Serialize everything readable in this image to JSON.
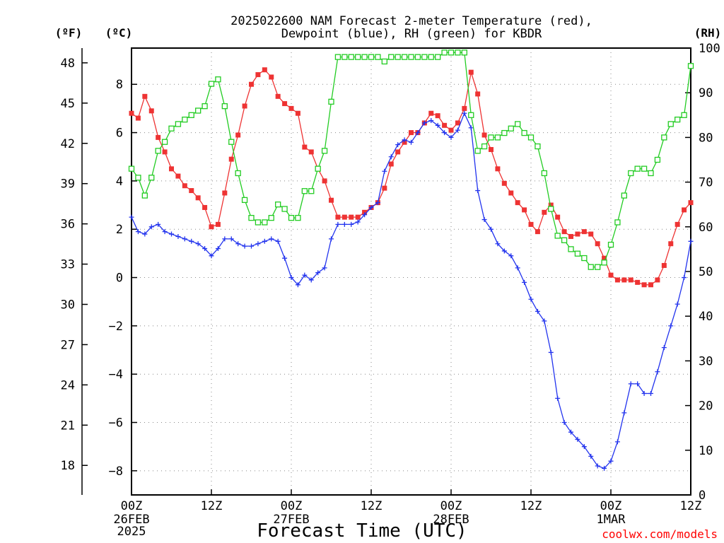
{
  "title_line1": "2025022600 NAM Forecast 2-meter Temperature (red),",
  "title_line2": "Dewpoint (blue), RH (green) for KBDR",
  "unit_f": "(ºF)",
  "unit_c": "(ºC)",
  "unit_rh": "(RH)",
  "xlabel": "Forecast Time (UTC)",
  "credit": "coolwx.com/models",
  "colors": {
    "temperature": "#ee3333",
    "dewpoint": "#2233ee",
    "rh": "#22cc22",
    "credit": "#ff0000"
  },
  "chart_data": {
    "type": "line",
    "x_unit": "forecast hour",
    "xlim": [
      0,
      84
    ],
    "ylim_c": [
      -9,
      9.5
    ],
    "ylim_rh": [
      0,
      100
    ],
    "f_ticks": [
      "18",
      "21",
      "24",
      "27",
      "30",
      "33",
      "36",
      "39",
      "42",
      "45",
      "48"
    ],
    "c_ticks": [
      "-8",
      "-6",
      "-4",
      "-2",
      "0",
      "2",
      "4",
      "6",
      "8"
    ],
    "rh_ticks": [
      "0",
      "10",
      "20",
      "30",
      "40",
      "50",
      "60",
      "70",
      "80",
      "90",
      "100"
    ],
    "x_ticks": [
      {
        "hour": 0,
        "label": "00Z",
        "line2": "26FEB",
        "line3": "2025"
      },
      {
        "hour": 12,
        "label": "12Z",
        "line2": "",
        "line3": ""
      },
      {
        "hour": 24,
        "label": "00Z",
        "line2": "27FEB",
        "line3": ""
      },
      {
        "hour": 36,
        "label": "12Z",
        "line2": "",
        "line3": ""
      },
      {
        "hour": 48,
        "label": "00Z",
        "line2": "28FEB",
        "line3": ""
      },
      {
        "hour": 60,
        "label": "12Z",
        "line2": "",
        "line3": ""
      },
      {
        "hour": 72,
        "label": "00Z",
        "line2": "1MAR",
        "line3": ""
      },
      {
        "hour": 84,
        "label": "12Z",
        "line2": "",
        "line3": ""
      }
    ],
    "grid": true,
    "series": [
      {
        "key": "temperature",
        "axis": "c",
        "values": [
          [
            0,
            6.8
          ],
          [
            1,
            6.6
          ],
          [
            2,
            7.5
          ],
          [
            3,
            6.9
          ],
          [
            4,
            5.8
          ],
          [
            5,
            5.2
          ],
          [
            6,
            4.5
          ],
          [
            7,
            4.2
          ],
          [
            8,
            3.8
          ],
          [
            9,
            3.6
          ],
          [
            10,
            3.3
          ],
          [
            11,
            2.9
          ],
          [
            12,
            2.1
          ],
          [
            13,
            2.2
          ],
          [
            14,
            3.5
          ],
          [
            15,
            4.9
          ],
          [
            16,
            5.9
          ],
          [
            17,
            7.1
          ],
          [
            18,
            8.0
          ],
          [
            19,
            8.4
          ],
          [
            20,
            8.6
          ],
          [
            21,
            8.3
          ],
          [
            22,
            7.5
          ],
          [
            23,
            7.2
          ],
          [
            24,
            7.0
          ],
          [
            25,
            6.8
          ],
          [
            26,
            5.4
          ],
          [
            27,
            5.2
          ],
          [
            28,
            4.5
          ],
          [
            29,
            4.0
          ],
          [
            30,
            3.2
          ],
          [
            31,
            2.5
          ],
          [
            32,
            2.5
          ],
          [
            33,
            2.5
          ],
          [
            34,
            2.5
          ],
          [
            35,
            2.7
          ],
          [
            36,
            2.9
          ],
          [
            37,
            3.1
          ],
          [
            38,
            3.7
          ],
          [
            39,
            4.7
          ],
          [
            40,
            5.2
          ],
          [
            41,
            5.6
          ],
          [
            42,
            6.0
          ],
          [
            43,
            6.0
          ],
          [
            44,
            6.4
          ],
          [
            45,
            6.8
          ],
          [
            46,
            6.7
          ],
          [
            47,
            6.3
          ],
          [
            48,
            6.1
          ],
          [
            49,
            6.4
          ],
          [
            50,
            7.0
          ],
          [
            51,
            8.5
          ],
          [
            52,
            7.6
          ],
          [
            53,
            5.9
          ],
          [
            54,
            5.3
          ],
          [
            55,
            4.5
          ],
          [
            56,
            3.9
          ],
          [
            57,
            3.5
          ],
          [
            58,
            3.1
          ],
          [
            59,
            2.8
          ],
          [
            60,
            2.2
          ],
          [
            61,
            1.9
          ],
          [
            62,
            2.7
          ],
          [
            63,
            3.0
          ],
          [
            64,
            2.5
          ],
          [
            65,
            1.9
          ],
          [
            66,
            1.7
          ],
          [
            67,
            1.8
          ],
          [
            68,
            1.9
          ],
          [
            69,
            1.8
          ],
          [
            70,
            1.4
          ],
          [
            71,
            0.8
          ],
          [
            72,
            0.1
          ],
          [
            73,
            -0.1
          ],
          [
            74,
            -0.1
          ],
          [
            75,
            -0.1
          ],
          [
            76,
            -0.2
          ],
          [
            77,
            -0.3
          ],
          [
            78,
            -0.3
          ],
          [
            79,
            -0.1
          ],
          [
            80,
            0.5
          ],
          [
            81,
            1.4
          ],
          [
            82,
            2.2
          ],
          [
            83,
            2.8
          ],
          [
            84,
            3.1
          ]
        ]
      },
      {
        "key": "dewpoint",
        "axis": "c",
        "values": [
          [
            0,
            2.5
          ],
          [
            1,
            1.9
          ],
          [
            2,
            1.8
          ],
          [
            3,
            2.1
          ],
          [
            4,
            2.2
          ],
          [
            5,
            1.9
          ],
          [
            6,
            1.8
          ],
          [
            7,
            1.7
          ],
          [
            8,
            1.6
          ],
          [
            9,
            1.5
          ],
          [
            10,
            1.4
          ],
          [
            11,
            1.2
          ],
          [
            12,
            0.9
          ],
          [
            13,
            1.2
          ],
          [
            14,
            1.6
          ],
          [
            15,
            1.6
          ],
          [
            16,
            1.4
          ],
          [
            17,
            1.3
          ],
          [
            18,
            1.3
          ],
          [
            19,
            1.4
          ],
          [
            20,
            1.5
          ],
          [
            21,
            1.6
          ],
          [
            22,
            1.5
          ],
          [
            23,
            0.8
          ],
          [
            24,
            0.0
          ],
          [
            25,
            -0.3
          ],
          [
            26,
            0.1
          ],
          [
            27,
            -0.1
          ],
          [
            28,
            0.2
          ],
          [
            29,
            0.4
          ],
          [
            30,
            1.6
          ],
          [
            31,
            2.2
          ],
          [
            32,
            2.2
          ],
          [
            33,
            2.2
          ],
          [
            34,
            2.3
          ],
          [
            35,
            2.6
          ],
          [
            36,
            2.9
          ],
          [
            37,
            3.1
          ],
          [
            38,
            4.4
          ],
          [
            39,
            5.0
          ],
          [
            40,
            5.5
          ],
          [
            41,
            5.7
          ],
          [
            42,
            5.6
          ],
          [
            43,
            6.0
          ],
          [
            44,
            6.4
          ],
          [
            45,
            6.5
          ],
          [
            46,
            6.3
          ],
          [
            47,
            6.0
          ],
          [
            48,
            5.8
          ],
          [
            49,
            6.1
          ],
          [
            50,
            6.8
          ],
          [
            51,
            6.2
          ],
          [
            52,
            3.6
          ],
          [
            53,
            2.4
          ],
          [
            54,
            2.0
          ],
          [
            55,
            1.4
          ],
          [
            56,
            1.1
          ],
          [
            57,
            0.9
          ],
          [
            58,
            0.4
          ],
          [
            59,
            -0.2
          ],
          [
            60,
            -0.9
          ],
          [
            61,
            -1.4
          ],
          [
            62,
            -1.8
          ],
          [
            63,
            -3.1
          ],
          [
            64,
            -5.0
          ],
          [
            65,
            -6.0
          ],
          [
            66,
            -6.4
          ],
          [
            67,
            -6.7
          ],
          [
            68,
            -7.0
          ],
          [
            69,
            -7.4
          ],
          [
            70,
            -7.8
          ],
          [
            71,
            -7.9
          ],
          [
            72,
            -7.6
          ],
          [
            73,
            -6.8
          ],
          [
            74,
            -5.6
          ],
          [
            75,
            -4.4
          ],
          [
            76,
            -4.4
          ],
          [
            77,
            -4.8
          ],
          [
            78,
            -4.8
          ],
          [
            79,
            -3.9
          ],
          [
            80,
            -2.9
          ],
          [
            81,
            -2.0
          ],
          [
            82,
            -1.1
          ],
          [
            83,
            -0.0
          ],
          [
            84,
            1.5
          ]
        ]
      },
      {
        "key": "rh",
        "axis": "rh",
        "values": [
          [
            0,
            73
          ],
          [
            1,
            71
          ],
          [
            2,
            67
          ],
          [
            3,
            71
          ],
          [
            4,
            77
          ],
          [
            5,
            79
          ],
          [
            6,
            82
          ],
          [
            7,
            83
          ],
          [
            8,
            84
          ],
          [
            9,
            85
          ],
          [
            10,
            86
          ],
          [
            11,
            87
          ],
          [
            12,
            92
          ],
          [
            13,
            93
          ],
          [
            14,
            87
          ],
          [
            15,
            79
          ],
          [
            16,
            72
          ],
          [
            17,
            66
          ],
          [
            18,
            62
          ],
          [
            19,
            61
          ],
          [
            20,
            61
          ],
          [
            21,
            62
          ],
          [
            22,
            65
          ],
          [
            23,
            64
          ],
          [
            24,
            62
          ],
          [
            25,
            62
          ],
          [
            26,
            68
          ],
          [
            27,
            68
          ],
          [
            28,
            73
          ],
          [
            29,
            77
          ],
          [
            30,
            88
          ],
          [
            31,
            98
          ],
          [
            32,
            98
          ],
          [
            33,
            98
          ],
          [
            34,
            98
          ],
          [
            35,
            98
          ],
          [
            36,
            98
          ],
          [
            37,
            98
          ],
          [
            38,
            97
          ],
          [
            39,
            98
          ],
          [
            40,
            98
          ],
          [
            41,
            98
          ],
          [
            42,
            98
          ],
          [
            43,
            98
          ],
          [
            44,
            98
          ],
          [
            45,
            98
          ],
          [
            46,
            98
          ],
          [
            47,
            99
          ],
          [
            48,
            99
          ],
          [
            49,
            99
          ],
          [
            50,
            99
          ],
          [
            51,
            85
          ],
          [
            52,
            77
          ],
          [
            53,
            78
          ],
          [
            54,
            80
          ],
          [
            55,
            80
          ],
          [
            56,
            81
          ],
          [
            57,
            82
          ],
          [
            58,
            83
          ],
          [
            59,
            81
          ],
          [
            60,
            80
          ],
          [
            61,
            78
          ],
          [
            62,
            72
          ],
          [
            63,
            64
          ],
          [
            64,
            58
          ],
          [
            65,
            57
          ],
          [
            66,
            55
          ],
          [
            67,
            54
          ],
          [
            68,
            53
          ],
          [
            69,
            51
          ],
          [
            70,
            51
          ],
          [
            71,
            52
          ],
          [
            72,
            56
          ],
          [
            73,
            61
          ],
          [
            74,
            67
          ],
          [
            75,
            72
          ],
          [
            76,
            73
          ],
          [
            77,
            73
          ],
          [
            78,
            72
          ],
          [
            79,
            75
          ],
          [
            80,
            80
          ],
          [
            81,
            83
          ],
          [
            82,
            84
          ],
          [
            83,
            85
          ],
          [
            84,
            96
          ]
        ]
      }
    ]
  }
}
